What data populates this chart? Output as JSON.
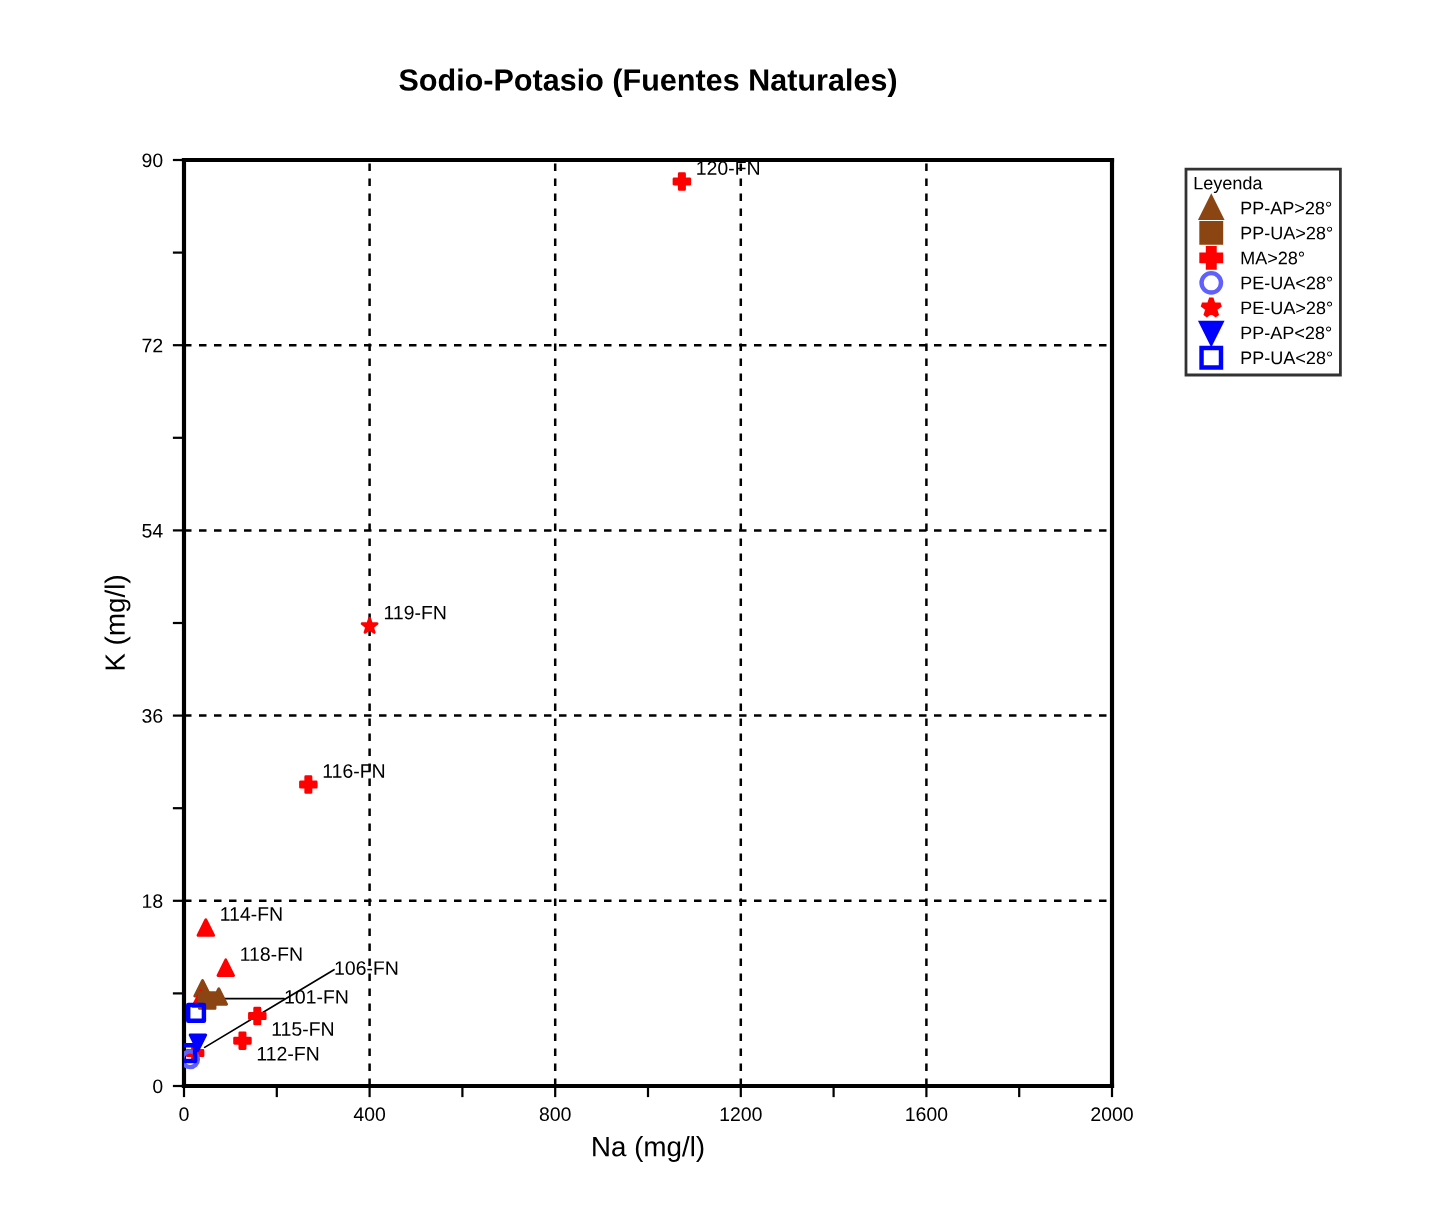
{
  "chart_data": {
    "type": "scatter",
    "title": "Sodio-Potasio (Fuentes Naturales)",
    "xlabel": "Na (mg/l)",
    "ylabel": "K (mg/l)",
    "legend_title": "Leyenda",
    "xlim": [
      0,
      2000
    ],
    "ylim": [
      0,
      90
    ],
    "xticks": [
      0,
      {
        "value": 200,
        "label": null
      },
      400,
      {
        "value": 600,
        "label": null
      },
      800,
      {
        "value": 1000,
        "label": null
      },
      1200,
      {
        "value": 1400,
        "label": null
      },
      1600,
      {
        "value": 1800,
        "label": null
      },
      2000
    ],
    "yticks": [
      0,
      {
        "value": 9,
        "label": null
      },
      18,
      {
        "value": 27,
        "label": null
      },
      36,
      {
        "value": 45,
        "label": null
      },
      54,
      {
        "value": 63,
        "label": null
      },
      72,
      {
        "value": 81,
        "label": null
      },
      90
    ],
    "grid": true,
    "legend": "right",
    "series": [
      {
        "name": "PP-AP>28°",
        "color": "#8b4513",
        "marker": "triangle",
        "x": [
          40,
          75,
          47,
          90,
          36
        ],
        "values": [
          9.5,
          8.7,
          15.4,
          11.5,
          8.5
        ],
        "colors": [
          "#8b4513",
          "#8b4513",
          "#ff0000",
          "#ff0000",
          "#ff0000"
        ]
      },
      {
        "name": "PP-UA>28°",
        "color": "#8b4513",
        "marker": "square",
        "x": [
          50
        ],
        "values": [
          8.3
        ],
        "colors": [
          "#8b4513"
        ]
      },
      {
        "name": "MA>28°",
        "color": "#ff0000",
        "marker": "cross",
        "x": [
          1073,
          268,
          158,
          126,
          24
        ],
        "values": [
          87.9,
          29.3,
          6.8,
          4.4,
          3.2
        ],
        "colors": [
          "#ff0000",
          "#ff0000",
          "#ff0000",
          "#ff0000",
          "#ff0000"
        ]
      },
      {
        "name": "PE-UA<28°",
        "color": "#6060ff",
        "marker": "circle",
        "x": [
          13
        ],
        "values": [
          2.6
        ],
        "colors": [
          "#6060ff"
        ]
      },
      {
        "name": "PE-UA>28°",
        "color": "#ff0000",
        "marker": "star",
        "x": [
          400
        ],
        "values": [
          44.7
        ],
        "colors": [
          "#ff0000"
        ]
      },
      {
        "name": "PP-AP<28°",
        "color": "#0000ff",
        "marker": "triangle_down",
        "x": [
          30
        ],
        "values": [
          4.2
        ],
        "colors": [
          "#0000ff"
        ]
      },
      {
        "name": "PP-UA<28°",
        "color": "#0000ff",
        "marker": "square_open",
        "x": [
          26,
          7
        ],
        "values": [
          7.1,
          3.2
        ],
        "colors": [
          "#0000ff",
          "#0000ff"
        ]
      }
    ],
    "annotations": [
      {
        "text": "120-FN",
        "x": 1073,
        "y": 87.9
      },
      {
        "text": "119-FN",
        "x": 400,
        "y": 44.7
      },
      {
        "text": "116-FN",
        "x": 268,
        "y": 29.3
      },
      {
        "text": "114-FN",
        "x": 47,
        "y": 15.4
      },
      {
        "text": "118-FN",
        "x": 90,
        "y": 11.5
      },
      {
        "text": "101-FN",
        "x": 36,
        "y": 8.5
      },
      {
        "text": "115-FN",
        "x": 158,
        "y": 6.8
      },
      {
        "text": "112-FN",
        "x": 126,
        "y": 4.4
      },
      {
        "text": "106-FN",
        "x": 24,
        "y": 3.2
      }
    ]
  }
}
